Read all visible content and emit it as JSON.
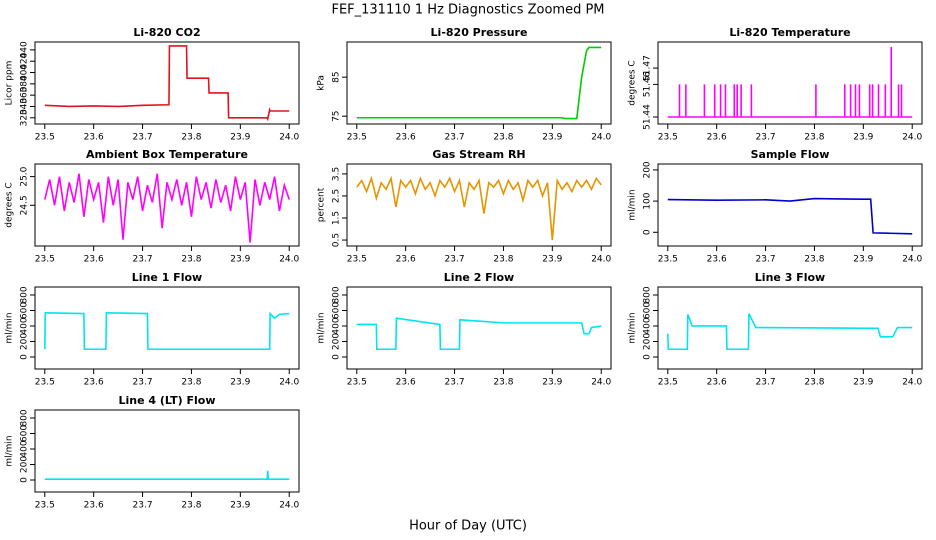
{
  "title": "FEF_131110  1 Hz Diagnostics Zoomed PM",
  "xlabel": "Hour of Day (UTC)",
  "chart_data": [
    {
      "type": "line",
      "title": "Li-820 CO2",
      "ylabel": "Licor ppm",
      "color": "#e0141c",
      "x": [
        23.5,
        23.55,
        23.6,
        23.65,
        23.7,
        23.754,
        23.755,
        23.79,
        23.791,
        23.835,
        23.836,
        23.875,
        23.876,
        23.955,
        23.956,
        23.96,
        23.961,
        24.0
      ],
      "values": [
        342,
        340,
        341,
        340,
        342,
        343,
        447,
        447,
        390,
        390,
        364,
        364,
        320,
        320,
        318,
        334,
        332,
        332
      ],
      "xlim": [
        23.48,
        24.02
      ],
      "xticks": [
        23.5,
        23.6,
        23.7,
        23.8,
        23.9,
        {
          "value": 24,
          "label": "24.0"
        }
      ],
      "ylim": [
        309,
        454
      ],
      "yticks": [
        320,
        340,
        360,
        380,
        400,
        420,
        440
      ]
    },
    {
      "type": "line",
      "title": "Li-820 Pressure",
      "ylabel": "kPa",
      "color": "#00cc00",
      "x": [
        23.5,
        23.7,
        23.92,
        23.925,
        23.95,
        23.96,
        23.97,
        23.975,
        24.0
      ],
      "values": [
        74.6,
        74.6,
        74.6,
        74.4,
        74.4,
        85,
        91.8,
        92.6,
        92.6
      ],
      "xlim": [
        23.48,
        24.02
      ],
      "xticks": [
        23.5,
        23.6,
        23.7,
        23.8,
        23.9,
        {
          "value": 24,
          "label": "24.0"
        }
      ],
      "ylim": [
        73,
        94
      ],
      "yticks": [
        75,
        85
      ]
    },
    {
      "type": "line",
      "title": "Li-820 Temperature",
      "ylabel": "degrees C",
      "color": "#ff00ff",
      "x": [
        23.5,
        23.524,
        23.524,
        23.524,
        23.537,
        23.537,
        23.537,
        23.575,
        23.575,
        23.575,
        23.596,
        23.596,
        23.596,
        23.608,
        23.608,
        23.608,
        23.618,
        23.618,
        23.618,
        23.636,
        23.636,
        23.636,
        23.642,
        23.642,
        23.642,
        23.65,
        23.65,
        23.65,
        23.671,
        23.671,
        23.671,
        23.803,
        23.803,
        23.803,
        23.862,
        23.862,
        23.862,
        23.874,
        23.874,
        23.874,
        23.884,
        23.884,
        23.884,
        23.892,
        23.892,
        23.892,
        23.913,
        23.913,
        23.913,
        23.919,
        23.919,
        23.919,
        23.931,
        23.931,
        23.931,
        23.945,
        23.945,
        23.945,
        23.957,
        23.957,
        23.957,
        23.972,
        23.972,
        23.972,
        23.978,
        23.978,
        23.978,
        24.0
      ],
      "values": [
        51.44,
        51.44,
        51.46,
        51.44,
        51.44,
        51.46,
        51.44,
        51.44,
        51.46,
        51.44,
        51.44,
        51.46,
        51.44,
        51.44,
        51.46,
        51.44,
        51.44,
        51.46,
        51.44,
        51.44,
        51.46,
        51.44,
        51.44,
        51.46,
        51.44,
        51.44,
        51.46,
        51.44,
        51.44,
        51.46,
        51.44,
        51.44,
        51.46,
        51.44,
        51.44,
        51.46,
        51.44,
        51.44,
        51.46,
        51.44,
        51.44,
        51.46,
        51.44,
        51.44,
        51.46,
        51.44,
        51.44,
        51.46,
        51.44,
        51.44,
        51.46,
        51.44,
        51.44,
        51.46,
        51.44,
        51.44,
        51.46,
        51.44,
        51.44,
        51.483,
        51.44,
        51.44,
        51.46,
        51.44,
        51.44,
        51.46,
        51.44,
        51.44
      ],
      "xlim": [
        23.48,
        24.02
      ],
      "xticks": [
        23.5,
        23.6,
        23.7,
        23.8,
        23.9,
        {
          "value": 24,
          "label": "24.0"
        }
      ],
      "ylim": [
        51.4357,
        51.486
      ],
      "yticks": [
        51.44,
        51.46,
        51.47
      ]
    },
    {
      "type": "line",
      "title": "Ambient Box Temperature",
      "ylabel": "degrees C",
      "color": "#ff00ff",
      "x": [
        23.5,
        23.51,
        23.52,
        23.53,
        23.54,
        23.55,
        23.56,
        23.57,
        23.58,
        23.59,
        23.6,
        23.61,
        23.62,
        23.63,
        23.64,
        23.65,
        23.66,
        23.67,
        23.68,
        23.69,
        23.7,
        23.71,
        23.72,
        23.73,
        23.74,
        23.75,
        23.76,
        23.77,
        23.78,
        23.79,
        23.8,
        23.81,
        23.82,
        23.83,
        23.84,
        23.85,
        23.86,
        23.87,
        23.88,
        23.89,
        23.9,
        23.91,
        23.92,
        23.93,
        23.94,
        23.95,
        23.96,
        23.97,
        23.98,
        23.99,
        24.0
      ],
      "values": [
        24.6,
        24.95,
        24.5,
        25.0,
        24.4,
        24.9,
        24.55,
        25.05,
        24.3,
        24.95,
        24.6,
        24.9,
        24.2,
        25.0,
        24.5,
        24.95,
        23.9,
        24.9,
        24.6,
        25.0,
        24.4,
        24.85,
        24.55,
        25.05,
        24.1,
        24.9,
        24.6,
        24.95,
        24.5,
        24.9,
        24.3,
        25.0,
        24.6,
        24.9,
        24.45,
        24.95,
        24.55,
        24.85,
        24.4,
        25.0,
        24.6,
        24.9,
        23.85,
        24.95,
        24.5,
        24.9,
        24.6,
        25.0,
        24.4,
        24.85,
        24.6
      ],
      "xlim": [
        23.48,
        24.02
      ],
      "xticks": [
        23.5,
        23.6,
        23.7,
        23.8,
        23.9,
        {
          "value": 24,
          "label": "24.0"
        }
      ],
      "ylim": [
        23.79,
        25.22
      ],
      "yticks": [
        24.5,
        {
          "value": 25,
          "label": "25.0"
        }
      ]
    },
    {
      "type": "line",
      "title": "Gas Stream RH",
      "ylabel": "percent",
      "color": "#e69500",
      "x": [
        23.5,
        23.51,
        23.52,
        23.53,
        23.54,
        23.55,
        23.56,
        23.57,
        23.58,
        23.59,
        23.6,
        23.61,
        23.62,
        23.63,
        23.64,
        23.65,
        23.66,
        23.67,
        23.68,
        23.69,
        23.7,
        23.71,
        23.72,
        23.73,
        23.74,
        23.75,
        23.76,
        23.77,
        23.78,
        23.79,
        23.8,
        23.81,
        23.82,
        23.83,
        23.84,
        23.85,
        23.86,
        23.87,
        23.88,
        23.89,
        23.9,
        23.91,
        23.92,
        23.93,
        23.94,
        23.95,
        23.96,
        23.97,
        23.98,
        23.99,
        24.0
      ],
      "values": [
        2.9,
        3.2,
        2.7,
        3.3,
        2.4,
        3.1,
        2.8,
        3.3,
        2.0,
        3.2,
        2.9,
        3.2,
        2.6,
        3.3,
        2.8,
        3.1,
        2.5,
        3.2,
        2.9,
        3.3,
        2.7,
        3.2,
        2.0,
        3.1,
        2.8,
        3.2,
        1.7,
        3.1,
        2.9,
        3.2,
        2.6,
        3.2,
        2.8,
        3.1,
        2.3,
        3.2,
        2.9,
        3.2,
        2.5,
        3.1,
        0.5,
        3.2,
        2.8,
        3.1,
        2.7,
        3.2,
        2.9,
        3.2,
        2.8,
        3.3,
        3.0
      ],
      "xlim": [
        23.48,
        24.02
      ],
      "xticks": [
        23.5,
        23.6,
        23.7,
        23.8,
        23.9,
        {
          "value": 24,
          "label": "24.0"
        }
      ],
      "ylim": [
        0.23,
        3.95
      ],
      "yticks": [
        0.5,
        1.5,
        2.5,
        3.5
      ]
    },
    {
      "type": "line",
      "title": "Sample Flow",
      "ylabel": "ml/min",
      "color": "#0000cc",
      "x": [
        23.5,
        23.6,
        23.7,
        23.75,
        23.8,
        23.85,
        23.9,
        23.915,
        23.92,
        23.95,
        24.0
      ],
      "values": [
        105,
        103,
        104,
        100,
        108,
        107,
        106,
        106,
        -2,
        -3,
        -5
      ],
      "xlim": [
        23.48,
        24.02
      ],
      "xticks": [
        23.5,
        23.6,
        23.7,
        23.8,
        23.9,
        {
          "value": 24,
          "label": "24.0"
        }
      ],
      "ylim": [
        -44,
        219
      ],
      "yticks": [
        0,
        100,
        200
      ]
    },
    {
      "type": "line",
      "title": "Line 1 Flow",
      "ylabel": "ml/min",
      "color": "#00e5ee",
      "x": [
        23.5,
        23.501,
        23.58,
        23.581,
        23.625,
        23.626,
        23.71,
        23.711,
        23.96,
        23.961,
        23.97,
        23.98,
        24.0
      ],
      "values": [
        100,
        570,
        560,
        100,
        100,
        570,
        560,
        100,
        100,
        560,
        500,
        550,
        560
      ],
      "xlim": [
        23.48,
        24.02
      ],
      "xticks": [
        23.5,
        23.6,
        23.7,
        23.8,
        23.9,
        {
          "value": 24,
          "label": "24.0"
        }
      ],
      "ylim": [
        -155,
        903
      ],
      "yticks": [
        0,
        200,
        400,
        600,
        800
      ]
    },
    {
      "type": "line",
      "title": "Line 2 Flow",
      "ylabel": "ml/min",
      "color": "#00e5ee",
      "x": [
        23.5,
        23.54,
        23.541,
        23.58,
        23.581,
        23.67,
        23.671,
        23.71,
        23.711,
        23.8,
        23.96,
        23.965,
        23.975,
        23.98,
        24.0
      ],
      "values": [
        420,
        420,
        100,
        100,
        500,
        420,
        100,
        100,
        480,
        440,
        440,
        300,
        300,
        380,
        400
      ],
      "xlim": [
        23.48,
        24.02
      ],
      "xticks": [
        23.5,
        23.6,
        23.7,
        23.8,
        23.9,
        {
          "value": 24,
          "label": "24.0"
        }
      ],
      "ylim": [
        -155,
        903
      ],
      "yticks": [
        0,
        200,
        400,
        600,
        800
      ]
    },
    {
      "type": "line",
      "title": "Line 3 Flow",
      "ylabel": "ml/min",
      "color": "#00e5ee",
      "x": [
        23.5,
        23.501,
        23.54,
        23.541,
        23.55,
        23.62,
        23.621,
        23.665,
        23.666,
        23.68,
        23.93,
        23.935,
        23.96,
        23.97,
        24.0
      ],
      "values": [
        300,
        100,
        100,
        550,
        400,
        400,
        100,
        100,
        560,
        380,
        370,
        260,
        260,
        380,
        380
      ],
      "xlim": [
        23.48,
        24.02
      ],
      "xticks": [
        23.5,
        23.6,
        23.7,
        23.8,
        23.9,
        {
          "value": 24,
          "label": "24.0"
        }
      ],
      "ylim": [
        -155,
        903
      ],
      "yticks": [
        0,
        200,
        400,
        600,
        800
      ]
    },
    {
      "type": "line",
      "title": "Line 4 (LT) Flow",
      "ylabel": "ml/min",
      "color": "#00e5ee",
      "x": [
        23.5,
        23.955,
        23.956,
        23.957,
        24.0
      ],
      "values": [
        10,
        10,
        120,
        10,
        10
      ],
      "xlim": [
        23.48,
        24.02
      ],
      "xticks": [
        23.5,
        23.6,
        23.7,
        23.8,
        23.9,
        {
          "value": 24,
          "label": "24.0"
        }
      ],
      "ylim": [
        -155,
        903
      ],
      "yticks": [
        0,
        200,
        400,
        600,
        800
      ]
    }
  ]
}
